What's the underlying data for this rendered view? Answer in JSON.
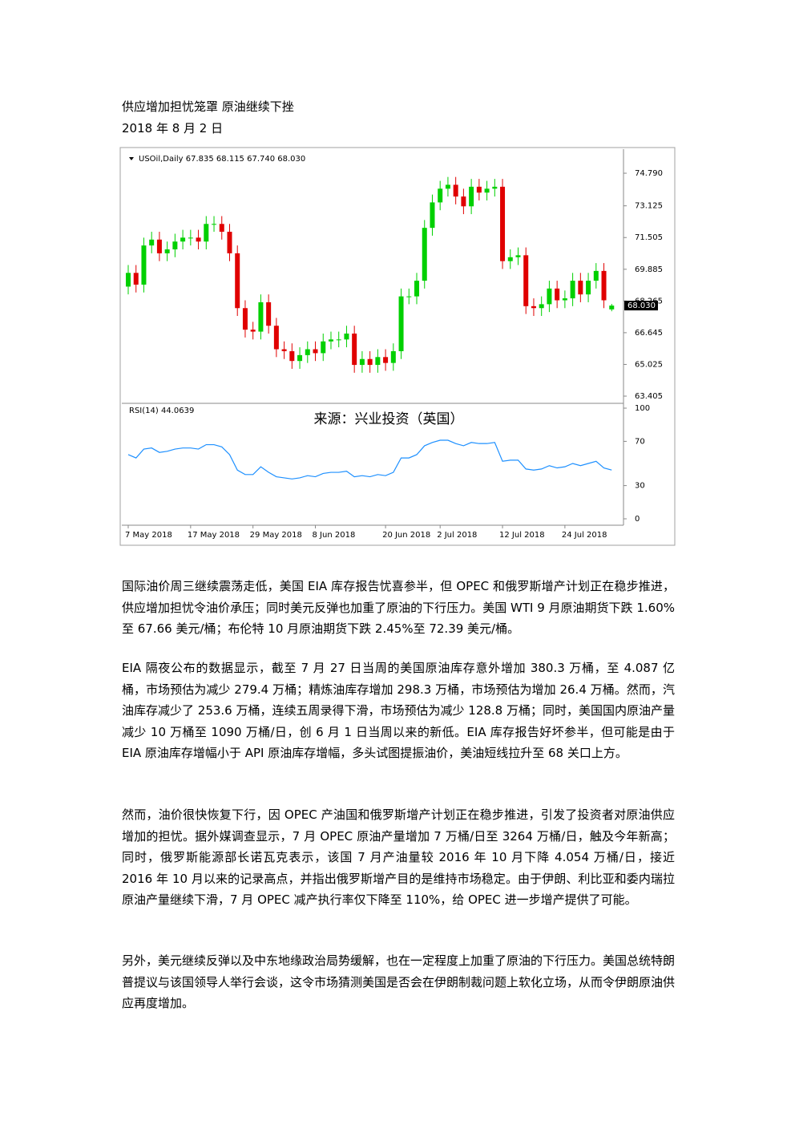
{
  "header": {
    "title": "供应增加担忧笼罩 原油继续下挫",
    "date": "2018 年 8 月 2 日"
  },
  "chart_data": {
    "type": "candlestick",
    "legend_text": "USOil,Daily  67.835 68.115 67.740 68.030",
    "categories": [
      "7 May 2018",
      null,
      null,
      null,
      null,
      null,
      null,
      null,
      "17 May 2018",
      null,
      null,
      null,
      null,
      null,
      null,
      null,
      "29 May 2018",
      null,
      null,
      null,
      null,
      null,
      null,
      null,
      "8 Jun 2018",
      null,
      null,
      null,
      null,
      null,
      null,
      null,
      null,
      "20 Jun 2018",
      null,
      null,
      null,
      null,
      null,
      null,
      "2 Jul 2018",
      null,
      null,
      null,
      null,
      null,
      null,
      null,
      "12 Jul 2018",
      null,
      null,
      null,
      null,
      null,
      null,
      null,
      "24 Jul 2018",
      null,
      null,
      null,
      null,
      null,
      null
    ],
    "open": [
      69.0,
      69.7,
      69.1,
      71.1,
      71.4,
      70.7,
      70.9,
      71.3,
      71.5,
      71.5,
      71.3,
      72.2,
      72.2,
      71.8,
      70.7,
      67.9,
      66.8,
      66.7,
      68.2,
      67.0,
      65.8,
      65.7,
      65.2,
      65.5,
      65.8,
      65.6,
      66.2,
      66.3,
      66.3,
      66.6,
      65.0,
      65.3,
      65.0,
      65.4,
      65.1,
      65.7,
      68.5,
      68.5,
      69.3,
      72.0,
      73.3,
      74.0,
      74.2,
      73.6,
      73.1,
      74.1,
      73.8,
      74.0,
      74.1,
      70.3,
      70.5,
      70.6,
      68.0,
      67.9,
      68.1,
      68.9,
      68.3,
      68.4,
      69.3,
      68.6,
      69.3,
      69.8,
      67.835
    ],
    "high": [
      70.1,
      70.1,
      71.5,
      71.8,
      71.8,
      71.3,
      71.7,
      71.9,
      71.9,
      71.9,
      72.6,
      72.6,
      72.6,
      72.2,
      71.1,
      68.3,
      67.2,
      68.6,
      68.6,
      67.4,
      66.2,
      66.1,
      65.9,
      66.2,
      66.2,
      66.6,
      66.7,
      66.7,
      67.0,
      67.0,
      65.7,
      65.7,
      65.8,
      65.8,
      66.1,
      68.9,
      68.9,
      69.7,
      72.4,
      73.7,
      74.4,
      74.6,
      74.6,
      74.0,
      74.5,
      74.5,
      74.4,
      74.5,
      74.5,
      70.9,
      71.0,
      71.0,
      68.4,
      68.5,
      69.3,
      69.3,
      68.8,
      69.7,
      69.7,
      69.7,
      70.2,
      70.2,
      68.115
    ],
    "low": [
      68.6,
      68.7,
      68.7,
      70.7,
      70.3,
      70.3,
      70.5,
      70.9,
      71.1,
      70.9,
      70.9,
      71.8,
      71.4,
      70.3,
      67.5,
      66.4,
      66.3,
      66.3,
      66.6,
      65.4,
      65.3,
      64.8,
      64.8,
      65.1,
      65.2,
      65.2,
      65.8,
      65.9,
      65.9,
      64.6,
      64.6,
      64.6,
      64.6,
      64.7,
      64.7,
      65.3,
      68.1,
      68.1,
      68.9,
      71.6,
      72.9,
      73.6,
      73.2,
      72.7,
      72.7,
      73.4,
      73.4,
      73.6,
      69.9,
      69.9,
      70.1,
      67.6,
      67.5,
      67.5,
      67.7,
      67.9,
      67.9,
      68.0,
      68.2,
      68.2,
      68.9,
      67.9,
      67.74
    ],
    "close": [
      69.7,
      69.1,
      71.1,
      71.4,
      70.7,
      70.9,
      71.3,
      71.5,
      71.5,
      71.3,
      72.2,
      72.2,
      71.8,
      70.7,
      67.9,
      66.8,
      66.7,
      68.2,
      67.0,
      65.8,
      65.7,
      65.2,
      65.5,
      65.8,
      65.6,
      66.2,
      66.3,
      66.3,
      66.6,
      65.0,
      65.3,
      65.0,
      65.4,
      65.1,
      65.7,
      68.5,
      68.5,
      69.3,
      72.0,
      73.3,
      74.0,
      74.2,
      73.6,
      73.1,
      74.1,
      73.8,
      74.0,
      74.1,
      70.3,
      70.5,
      70.6,
      68.0,
      67.9,
      68.1,
      68.9,
      68.3,
      68.4,
      69.3,
      68.6,
      69.3,
      69.8,
      68.3,
      68.03
    ],
    "up_color": "#00d000",
    "down_color": "#e00000",
    "ylim": [
      63.16,
      76.02
    ],
    "yticks": [
      {
        "value": 74.79,
        "label": "74.790"
      },
      73.125,
      71.505,
      69.885,
      68.265,
      66.645,
      65.025,
      63.405
    ],
    "last_price_label": "68.030",
    "annotation": "来源：兴业投资（英国）",
    "rsi": {
      "label": "RSI(14) 44.0639",
      "color": "#1e90ff",
      "ylim": [
        0,
        100
      ],
      "yticks": [
        100,
        70,
        30,
        0
      ],
      "values": [
        58,
        55,
        63,
        64,
        60,
        61,
        63,
        64,
        64,
        63,
        67,
        67,
        65,
        58,
        44,
        40,
        40,
        47,
        42,
        38,
        37,
        36,
        37,
        39,
        38,
        41,
        42,
        42,
        43,
        38,
        39,
        38,
        40,
        39,
        42,
        55,
        55,
        58,
        66,
        69,
        71,
        71,
        68,
        66,
        69,
        68,
        68,
        69,
        52,
        53,
        53,
        45,
        44,
        45,
        48,
        46,
        47,
        50,
        48,
        50,
        52,
        46,
        44.0639
      ]
    }
  },
  "body": {
    "paragraphs": [
      "国际油价周三继续震荡走低，美国 EIA 库存报告忧喜参半，但 OPEC 和俄罗斯增产计划正在稳步推进，供应增加担忧令油价承压；同时美元反弹也加重了原油的下行压力。美国 WTI 9 月原油期货下跌 1.60%至 67.66 美元/桶；布伦特 10 月原油期货下跌 2.45%至 72.39 美元/桶。",
      "EIA 隔夜公布的数据显示，截至 7 月 27 日当周的美国原油库存意外增加 380.3 万桶，至 4.087 亿桶，市场预估为减少 279.4 万桶；精炼油库存增加 298.3 万桶，市场预估为增加 26.4 万桶。然而，汽油库存减少了 253.6 万桶，连续五周录得下滑，市场预估为减少 128.8 万桶；同时，美国国内原油产量减少 10 万桶至 1090 万桶/日，创 6 月 1 日当周以来的新低。EIA 库存报告好坏参半，但可能是由于 EIA 原油库存增幅小于 API 原油库存增幅，多头试图提振油价，美油短线拉升至 68 关口上方。",
      "然而，油价很快恢复下行，因 OPEC 产油国和俄罗斯增产计划正在稳步推进，引发了投资者对原油供应增加的担忧。据外媒调查显示，7 月 OPEC 原油产量增加 7 万桶/日至 3264 万桶/日，触及今年新高；同时，俄罗斯能源部长诺瓦克表示，该国 7 月产油量较 2016 年 10 月下降 4.054 万桶/日，接近 2016 年 10 月以来的记录高点，并指出俄罗斯增产目的是维持市场稳定。由于伊朗、利比亚和委内瑞拉原油产量继续下滑，7 月 OPEC 减产执行率仅下降至 110%，给 OPEC 进一步增产提供了可能。",
      "另外，美元继续反弹以及中东地缘政治局势缓解，也在一定程度上加重了原油的下行压力。美国总统特朗普提议与该国领导人举行会谈，这令市场猜测美国是否会在伊朗制裁问题上软化立场，从而令伊朗原油供应再度增加。"
    ]
  }
}
